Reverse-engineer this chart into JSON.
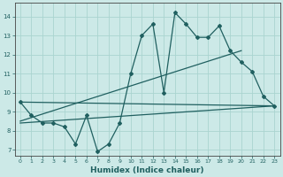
{
  "xlabel": "Humidex (Indice chaleur)",
  "xlim": [
    -0.5,
    23.5
  ],
  "ylim": [
    6.7,
    14.7
  ],
  "yticks": [
    7,
    8,
    9,
    10,
    11,
    12,
    13,
    14
  ],
  "xticks": [
    0,
    1,
    2,
    3,
    4,
    5,
    6,
    7,
    8,
    9,
    10,
    11,
    12,
    13,
    14,
    15,
    16,
    17,
    18,
    19,
    20,
    21,
    22,
    23
  ],
  "bg_color": "#cce9e7",
  "grid_color": "#aad4d0",
  "line_color": "#206060",
  "line1_x": [
    0,
    1,
    2,
    3,
    4,
    5,
    6,
    7,
    8,
    9,
    10,
    11,
    12,
    13,
    14,
    15,
    16,
    17,
    18,
    19,
    20,
    21,
    22,
    23
  ],
  "line1_y": [
    9.5,
    8.8,
    8.4,
    8.4,
    8.2,
    7.3,
    8.8,
    6.9,
    7.3,
    8.4,
    11.0,
    13.0,
    13.6,
    10.0,
    14.2,
    13.6,
    12.9,
    12.9,
    13.5,
    12.2,
    11.6,
    11.1,
    9.8,
    9.3
  ],
  "line2_x": [
    0,
    23
  ],
  "line2_y": [
    9.5,
    9.3
  ],
  "line3_x": [
    0,
    20
  ],
  "line3_y": [
    8.5,
    12.2
  ],
  "line4_x": [
    0,
    23
  ],
  "line4_y": [
    8.4,
    9.3
  ],
  "tick_fontsize": 5.0,
  "xlabel_fontsize": 6.5
}
